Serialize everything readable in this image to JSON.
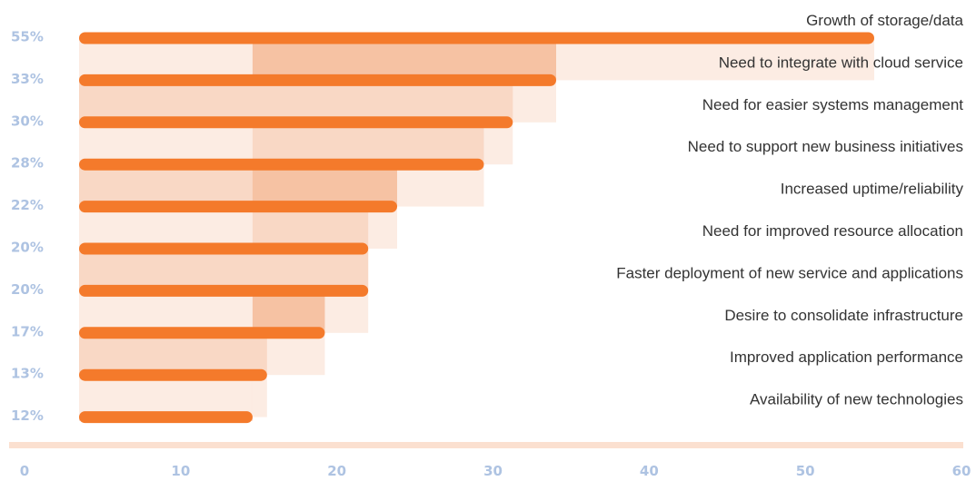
{
  "colors": {
    "bar": "#f47a2b",
    "band_dark": "#f6c2a3",
    "band_mid": "#f9d8c5",
    "band_light": "#fcece3",
    "axis_line": "#fbe0d0",
    "axis_text": "#aec3e2",
    "label_text": "#333333"
  },
  "chart_data": {
    "type": "bar",
    "orientation": "horizontal",
    "categories": [
      "Growth of storage/data",
      "Need to integrate with cloud service",
      "Need for easier systems management",
      "Need to support new business initiatives",
      "Increased uptime/reliability",
      "Need for improved resource allocation",
      "Faster deployment of new service and applications",
      "Desire to consolidate infrastructure",
      "Improved application performance",
      "Availability of new technologies"
    ],
    "values": [
      55,
      33,
      30,
      28,
      22,
      20,
      20,
      17,
      13,
      12
    ],
    "value_labels": [
      "55%",
      "33%",
      "30%",
      "28%",
      "22%",
      "20%",
      "20%",
      "17%",
      "13%",
      "12%"
    ],
    "x_ticks": [
      "0",
      "10",
      "20",
      "30",
      "40",
      "50",
      "60"
    ],
    "xlim": [
      0,
      60
    ],
    "title": "",
    "xlabel": "",
    "ylabel": "",
    "grid": false,
    "legend": "none"
  }
}
